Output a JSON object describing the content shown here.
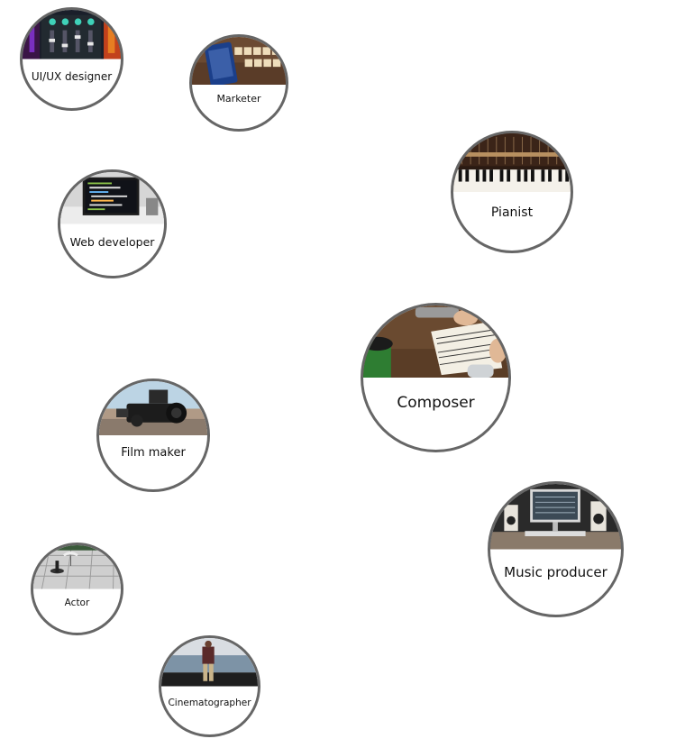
{
  "roles": [
    {
      "key": "uiux",
      "label": "UI/UX designer"
    },
    {
      "key": "marketer",
      "label": "Marketer"
    },
    {
      "key": "pianist",
      "label": "Pianist"
    },
    {
      "key": "webdev",
      "label": "Web developer"
    },
    {
      "key": "composer",
      "label": "Composer"
    },
    {
      "key": "filmmaker",
      "label": "Film maker"
    },
    {
      "key": "musicproducer",
      "label": "Music producer"
    },
    {
      "key": "actor",
      "label": "Actor"
    },
    {
      "key": "cinematographer",
      "label": "Cinematographer"
    }
  ],
  "colors": {
    "border": "#666666",
    "text": "#111111"
  }
}
